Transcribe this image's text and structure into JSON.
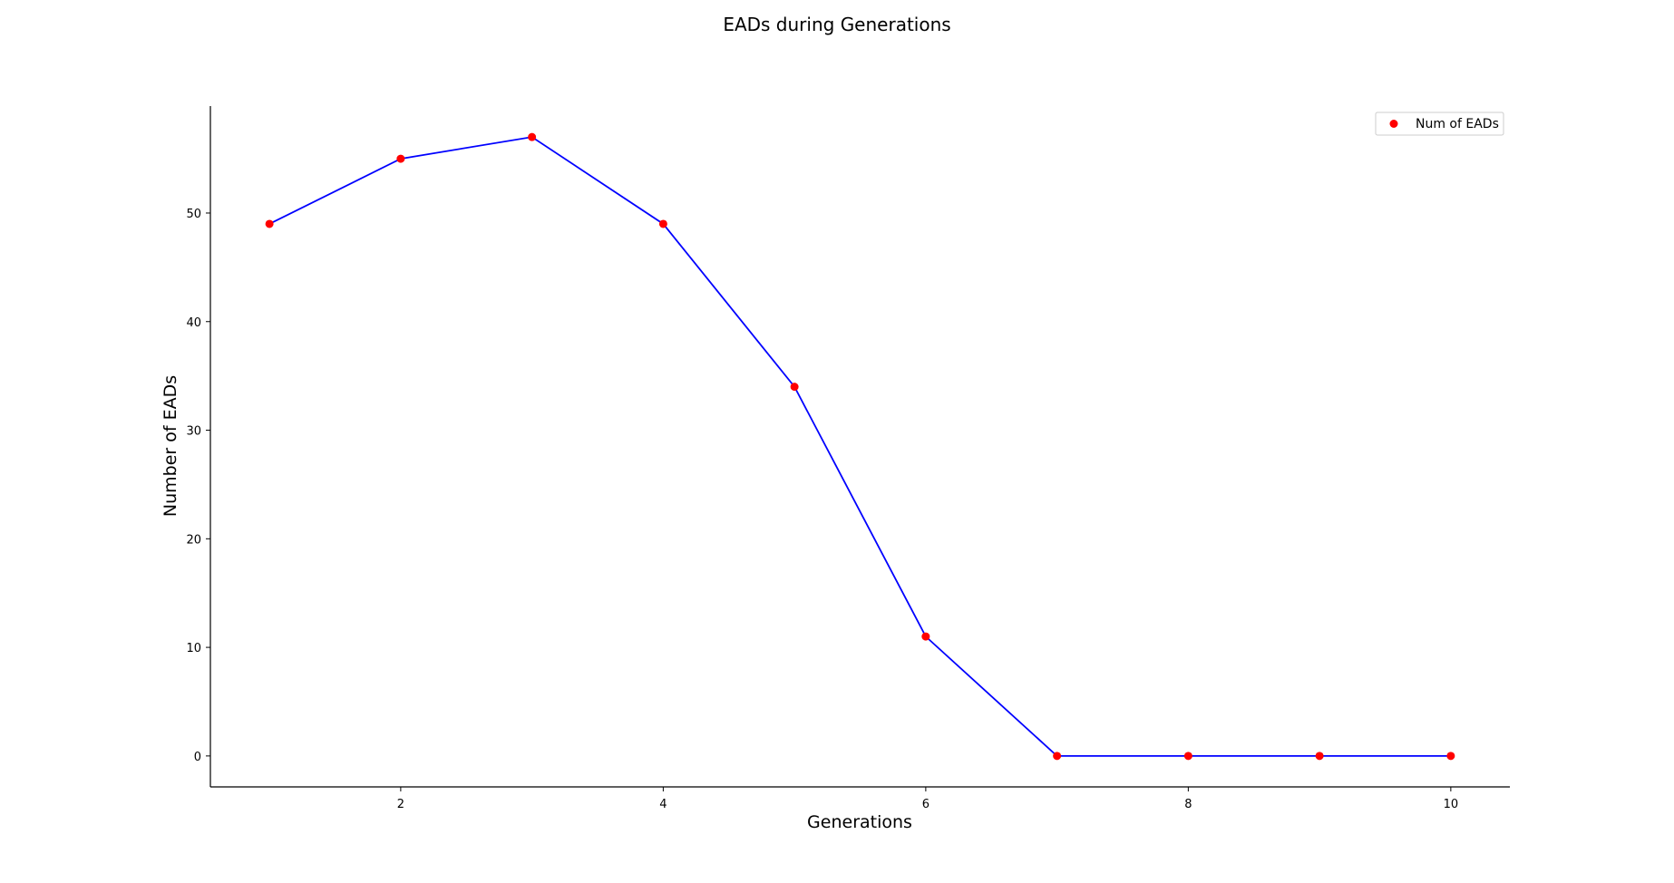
{
  "chart_data": {
    "type": "line",
    "title": "EADs during Generations",
    "xlabel": "Generations",
    "ylabel": "Number of EADs",
    "x": [
      1,
      2,
      3,
      4,
      5,
      6,
      7,
      8,
      9,
      10
    ],
    "series": [
      {
        "name": "Num of EADs",
        "values": [
          49,
          55,
          57,
          49,
          34,
          11,
          0,
          0,
          0,
          0
        ],
        "line_color": "#0000ff",
        "marker_color": "#ff0000"
      }
    ],
    "xlim": [
      0.55,
      10.45
    ],
    "ylim": [
      -2.85,
      59.85
    ],
    "xticks": [
      2,
      4,
      6,
      8,
      10
    ],
    "yticks": [
      0,
      10,
      20,
      30,
      40,
      50
    ],
    "grid": false,
    "legend": "top-right"
  }
}
